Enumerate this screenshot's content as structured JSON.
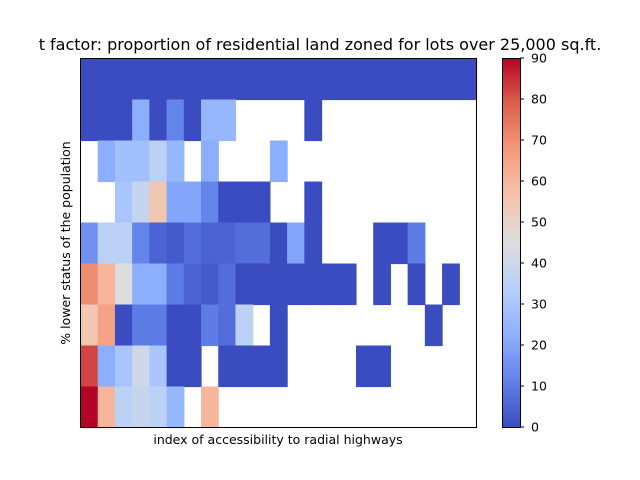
{
  "chart_data": {
    "type": "heatmap",
    "title": "t factor: proportion of residential land zoned for lots over 25,000 sq.ft.",
    "xlabel": "index of accessibility to radial highways",
    "ylabel": "% lower status of the population",
    "colorbar": {
      "colormap": "coolwarm",
      "min": 0,
      "max": 90,
      "ticks": [
        "0",
        "10",
        "20",
        "30",
        "40",
        "50",
        "60",
        "70",
        "80",
        "90"
      ]
    },
    "grid": false,
    "x_ticks_visible": false,
    "y_ticks_visible": false,
    "note_missing": "null = empty (no data) cell",
    "values": [
      [
        0,
        0,
        0,
        0,
        0,
        0,
        0,
        0,
        0,
        0,
        0,
        0,
        0,
        0,
        0,
        0,
        0,
        0,
        0,
        0,
        0,
        0,
        0
      ],
      [
        0,
        0,
        0,
        22,
        0,
        12,
        0,
        25,
        25,
        null,
        null,
        null,
        null,
        0,
        null,
        null,
        null,
        null,
        null,
        null,
        null,
        null,
        null
      ],
      [
        null,
        22,
        28,
        28,
        35,
        25,
        null,
        22,
        null,
        null,
        null,
        22,
        null,
        null,
        null,
        null,
        null,
        null,
        null,
        null,
        null,
        null,
        null
      ],
      [
        null,
        null,
        30,
        38,
        55,
        20,
        20,
        12,
        0,
        0,
        0,
        null,
        null,
        0,
        null,
        null,
        null,
        null,
        null,
        null,
        null,
        null,
        null
      ],
      [
        15,
        35,
        35,
        12,
        5,
        3,
        7,
        5,
        5,
        7,
        7,
        0,
        20,
        0,
        null,
        null,
        null,
        0,
        0,
        10,
        null,
        null,
        null
      ],
      [
        70,
        60,
        45,
        22,
        22,
        10,
        5,
        3,
        7,
        0,
        0,
        0,
        0,
        0,
        0,
        0,
        null,
        0,
        null,
        0,
        null,
        0,
        null
      ],
      [
        55,
        65,
        0,
        10,
        10,
        0,
        0,
        10,
        7,
        35,
        null,
        0,
        null,
        null,
        null,
        null,
        null,
        null,
        null,
        null,
        0,
        null,
        null
      ],
      [
        82,
        22,
        30,
        40,
        30,
        0,
        0,
        null,
        0,
        0,
        0,
        0,
        null,
        null,
        null,
        null,
        0,
        0,
        null,
        null,
        null,
        null,
        null
      ],
      [
        90,
        60,
        35,
        38,
        35,
        25,
        null,
        60,
        null,
        null,
        null,
        null,
        null,
        null,
        null,
        null,
        null,
        null,
        null,
        null,
        null,
        null,
        null
      ]
    ]
  }
}
